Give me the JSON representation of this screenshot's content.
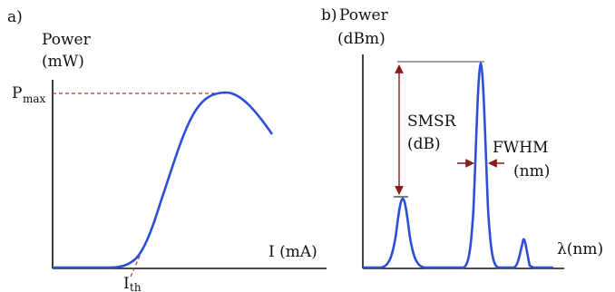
{
  "panel_a": {
    "label": "a)",
    "ylabel_line1": "Power",
    "ylabel_line2": "(mW)",
    "xlabel": "I (mA)",
    "pmax_main": "P",
    "pmax_sub": "max",
    "ith_main": "I",
    "ith_sub": "th"
  },
  "panel_b": {
    "label": "b)",
    "ylabel_line1": "Power",
    "ylabel_line2": "(dBm)",
    "xlabel": "λ(nm)",
    "smsr_line1": "SMSR",
    "smsr_line2": "(dB)",
    "fwhm_line1": "FWHM",
    "fwhm_line2": "(nm)"
  },
  "colors": {
    "curve": "#2b4fd8",
    "guide": "#b83232",
    "annotation": "#8b1a1a",
    "axis": "#111111"
  }
}
